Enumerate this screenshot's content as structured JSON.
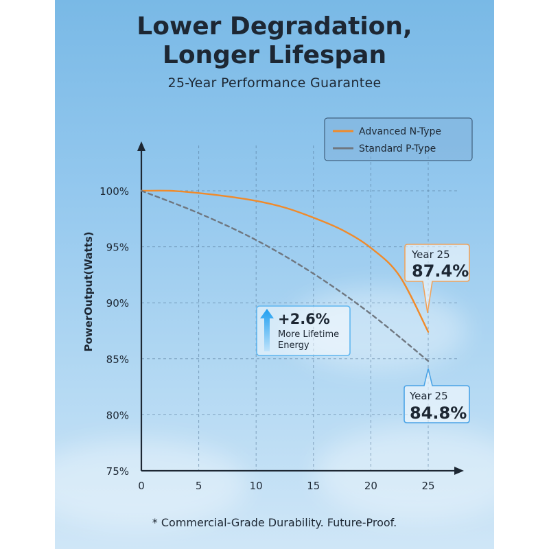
{
  "header": {
    "title_line1": "Lower Degradation,",
    "title_line2": "Longer Lifespan",
    "subtitle": "25-Year Performance Guarantee"
  },
  "footnote": "* Commercial-Grade Durability. Future-Proof.",
  "colors": {
    "n_type": "#f08a2a",
    "p_type": "#6f7780",
    "highlight": "#1e9ef0"
  },
  "chart_data": {
    "type": "line",
    "title": "",
    "xlabel": "",
    "ylabel": "PowerOutput(Watts)",
    "xlim": [
      0,
      25
    ],
    "ylim": [
      75,
      100
    ],
    "x_ticks": [
      "0",
      "5",
      "10",
      "15",
      "20",
      "25"
    ],
    "y_ticks": [
      "75%",
      "80%",
      "85%",
      "90%",
      "95%",
      "100%"
    ],
    "grid": true,
    "legend_position": "top-right",
    "series": [
      {
        "name": "Advanced N-Type",
        "style": "solid",
        "x": [
          0,
          2.5,
          5,
          7.5,
          10,
          12.5,
          15,
          17.5,
          20,
          22.5,
          25
        ],
        "y": [
          100,
          100,
          99.8,
          99.5,
          99.1,
          98.5,
          97.6,
          96.5,
          94.9,
          92.4,
          87.4
        ]
      },
      {
        "name": "Standard P-Type",
        "style": "dashed",
        "x": [
          0,
          5,
          10,
          15,
          20,
          25
        ],
        "y": [
          100,
          98.0,
          95.6,
          92.6,
          89.0,
          84.8
        ]
      }
    ],
    "annotations": [
      {
        "name": "n-type-end",
        "label": "Year 25",
        "value": "87.4%"
      },
      {
        "name": "p-type-end",
        "label": "Year 25",
        "value": "84.8%"
      },
      {
        "name": "gain",
        "value": "+2.6%",
        "line1": "More Lifetime",
        "line2": "Energy"
      }
    ]
  }
}
